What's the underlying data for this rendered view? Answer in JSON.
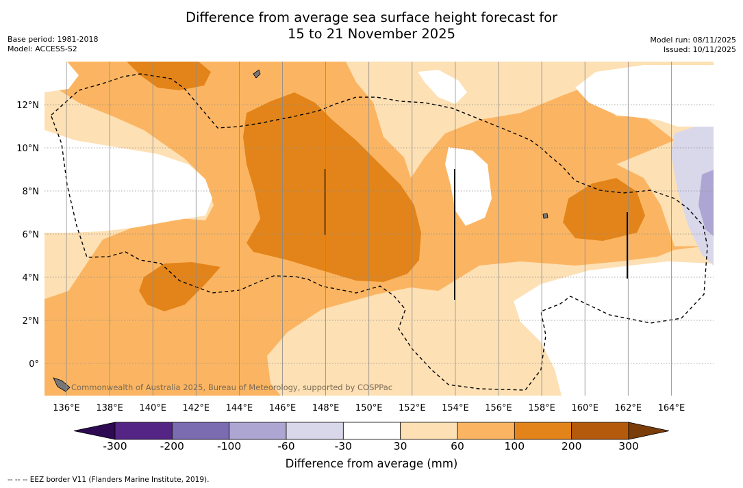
{
  "title": {
    "line1": "Difference from average sea surface height forecast for",
    "line2": "15 to 21 November 2025"
  },
  "meta": {
    "base_period": "Base period: 1981-2018",
    "model": "Model: ACCESS-S2",
    "model_run": "Model run: 08/11/2025",
    "issued": "Issued: 10/11/2025"
  },
  "map": {
    "lon_ticks": [
      "136°E",
      "138°E",
      "140°E",
      "142°E",
      "144°E",
      "146°E",
      "148°E",
      "150°E",
      "152°E",
      "154°E",
      "156°E",
      "158°E",
      "160°E",
      "162°E",
      "164°E"
    ],
    "lat_ticks": [
      "12°N",
      "10°N",
      "8°N",
      "6°N",
      "4°N",
      "2°N",
      "0°"
    ],
    "credit": "Commonwealth of Australia 2025, Bureau of Meteorology, supported by COSPPac"
  },
  "colorbar": {
    "title": "Difference from average (mm)",
    "labels": [
      "-300",
      "-200",
      "-100",
      "-60",
      "-30",
      "30",
      "60",
      "100",
      "200",
      "300"
    ],
    "colors": {
      "under": "#2d0a52",
      "bins": [
        "#552586",
        "#7b6bb0",
        "#aea6d2",
        "#d9d7ea",
        "#ffffff",
        "#fde0b4",
        "#fbb562",
        "#e3841a",
        "#b45a0d"
      ],
      "over": "#7a3c08"
    }
  },
  "footer": "-- -- -- EEZ border V11 (Flanders Marine Institute, 2019)."
}
